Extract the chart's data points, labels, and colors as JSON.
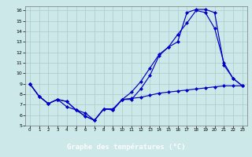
{
  "title": "Graphe des températures (°C)",
  "background_color": "#cce8e8",
  "plot_bg_color": "#cce8e8",
  "grid_color": "#aacccc",
  "line_color": "#0000cc",
  "xlabel_bg": "#3333aa",
  "xlabel_fg": "#ffffff",
  "xlim": [
    -0.5,
    23.5
  ],
  "ylim": [
    5,
    16.4
  ],
  "xticks": [
    0,
    1,
    2,
    3,
    4,
    5,
    6,
    7,
    8,
    9,
    10,
    11,
    12,
    13,
    14,
    15,
    16,
    17,
    18,
    19,
    20,
    21,
    22,
    23
  ],
  "yticks": [
    5,
    6,
    7,
    8,
    9,
    10,
    11,
    12,
    13,
    14,
    15,
    16
  ],
  "series1_x": [
    0,
    1,
    2,
    3,
    4,
    5,
    6,
    7,
    8,
    9,
    10,
    11,
    12,
    13,
    14,
    15,
    16,
    17,
    18,
    19,
    20,
    21,
    22,
    23
  ],
  "series1_y": [
    9.0,
    7.8,
    7.1,
    7.5,
    7.3,
    6.5,
    5.9,
    5.5,
    6.6,
    6.5,
    7.5,
    7.5,
    8.5,
    9.8,
    11.7,
    12.5,
    13.7,
    14.8,
    16.0,
    15.8,
    14.3,
    11.0,
    9.5,
    8.8
  ],
  "series2_x": [
    0,
    1,
    2,
    3,
    4,
    5,
    6,
    7,
    8,
    9,
    10,
    11,
    12,
    13,
    14,
    15,
    16,
    17,
    18,
    19,
    20,
    21,
    22,
    23
  ],
  "series2_y": [
    9.0,
    7.8,
    7.1,
    7.5,
    7.3,
    6.5,
    5.9,
    5.5,
    6.6,
    6.5,
    7.5,
    8.2,
    9.2,
    10.5,
    11.8,
    12.5,
    13.0,
    15.8,
    16.1,
    16.1,
    15.8,
    10.8,
    9.5,
    8.8
  ],
  "series3_x": [
    0,
    1,
    2,
    3,
    4,
    5,
    6,
    7,
    8,
    9,
    10,
    11,
    12,
    13,
    14,
    15,
    16,
    17,
    18,
    19,
    20,
    21,
    22,
    23
  ],
  "series3_y": [
    9.0,
    7.8,
    7.1,
    7.5,
    6.8,
    6.5,
    6.2,
    5.5,
    6.6,
    6.6,
    7.5,
    7.6,
    7.7,
    7.9,
    8.1,
    8.2,
    8.3,
    8.4,
    8.5,
    8.6,
    8.7,
    8.8,
    8.8,
    8.8
  ]
}
